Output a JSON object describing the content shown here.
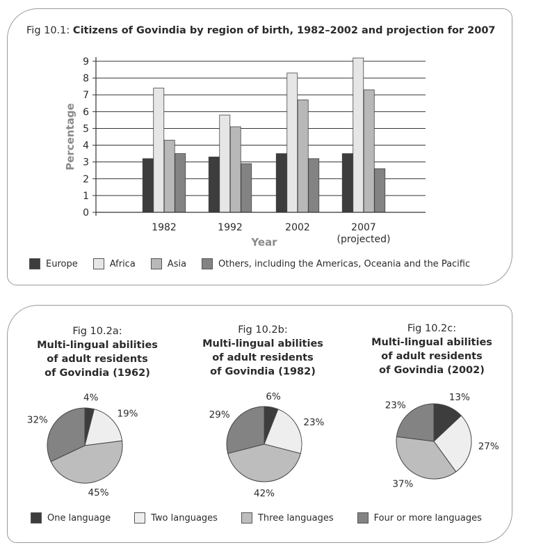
{
  "colors": {
    "europe": "#3d3d3d",
    "africa": "#e6e6e6",
    "asia": "#b8b8b8",
    "others": "#838383",
    "one": "#3d3d3d",
    "two": "#eeeeee",
    "three": "#bdbdbd",
    "four": "#838383"
  },
  "chart_data": [
    {
      "type": "bar",
      "title_prefix": "Fig 10.1:",
      "title": "Citizens of Govindia by region of birth, 1982–2002 and projection for 2007",
      "xlabel": "Year",
      "ylabel": "Percentage",
      "ylim": [
        0,
        9
      ],
      "yticks": [
        "0",
        "1",
        "2",
        "3",
        "4",
        "5",
        "6",
        "7",
        "8",
        "9"
      ],
      "grid": true,
      "legend_position": "bottom",
      "categories": [
        {
          "label": "1982",
          "sublabel": ""
        },
        {
          "label": "1992",
          "sublabel": ""
        },
        {
          "label": "2002",
          "sublabel": ""
        },
        {
          "label": "2007",
          "sublabel": "(projected)"
        }
      ],
      "series": [
        {
          "name": "Europe",
          "color_key": "europe",
          "values": [
            3.2,
            3.3,
            3.5,
            3.5
          ]
        },
        {
          "name": "Africa",
          "color_key": "africa",
          "values": [
            7.4,
            5.8,
            8.3,
            9.2
          ]
        },
        {
          "name": "Asia",
          "color_key": "asia",
          "values": [
            4.3,
            5.1,
            6.7,
            7.3
          ]
        },
        {
          "name": "Others, including the Americas, Oceania and the Pacific",
          "color_key": "others",
          "values": [
            3.5,
            2.9,
            3.2,
            2.6
          ]
        }
      ]
    },
    {
      "type": "pie",
      "caption": "Fig 10.2a:",
      "title": "Multi-lingual abilities of adult residents of Govindia (1962)",
      "title_lines": [
        "Multi-lingual abilities",
        "of adult residents",
        "of Govindia (1962)"
      ],
      "labels": [
        "One language",
        "Two languages",
        "Three languages",
        "Four or more languages"
      ],
      "values": [
        4,
        19,
        45,
        32
      ],
      "value_labels": [
        "4%",
        "19%",
        "45%",
        "32%"
      ]
    },
    {
      "type": "pie",
      "caption": "Fig 10.2b:",
      "title": "Multi-lingual abilities of adult residents of Govindia (1982)",
      "title_lines": [
        "Multi-lingual abilities",
        "of adult residents",
        "of Govindia (1982)"
      ],
      "labels": [
        "One language",
        "Two languages",
        "Three languages",
        "Four or more languages"
      ],
      "values": [
        6,
        23,
        42,
        29
      ],
      "value_labels": [
        "6%",
        "23%",
        "42%",
        "29%"
      ]
    },
    {
      "type": "pie",
      "caption": "Fig 10.2c:",
      "title": "Multi-lingual abilities of adult residents of Govindia (2002)",
      "title_lines": [
        "Multi-lingual abilities",
        "of adult residents",
        "of Govindia (2002)"
      ],
      "labels": [
        "One language",
        "Two languages",
        "Three languages",
        "Four or more languages"
      ],
      "values": [
        13,
        27,
        37,
        23
      ],
      "value_labels": [
        "13%",
        "27%",
        "37%",
        "23%"
      ]
    }
  ],
  "pie_legend": [
    {
      "label": "One language",
      "color_key": "one"
    },
    {
      "label": "Two languages",
      "color_key": "two"
    },
    {
      "label": "Three languages",
      "color_key": "three"
    },
    {
      "label": "Four or more languages",
      "color_key": "four"
    }
  ]
}
